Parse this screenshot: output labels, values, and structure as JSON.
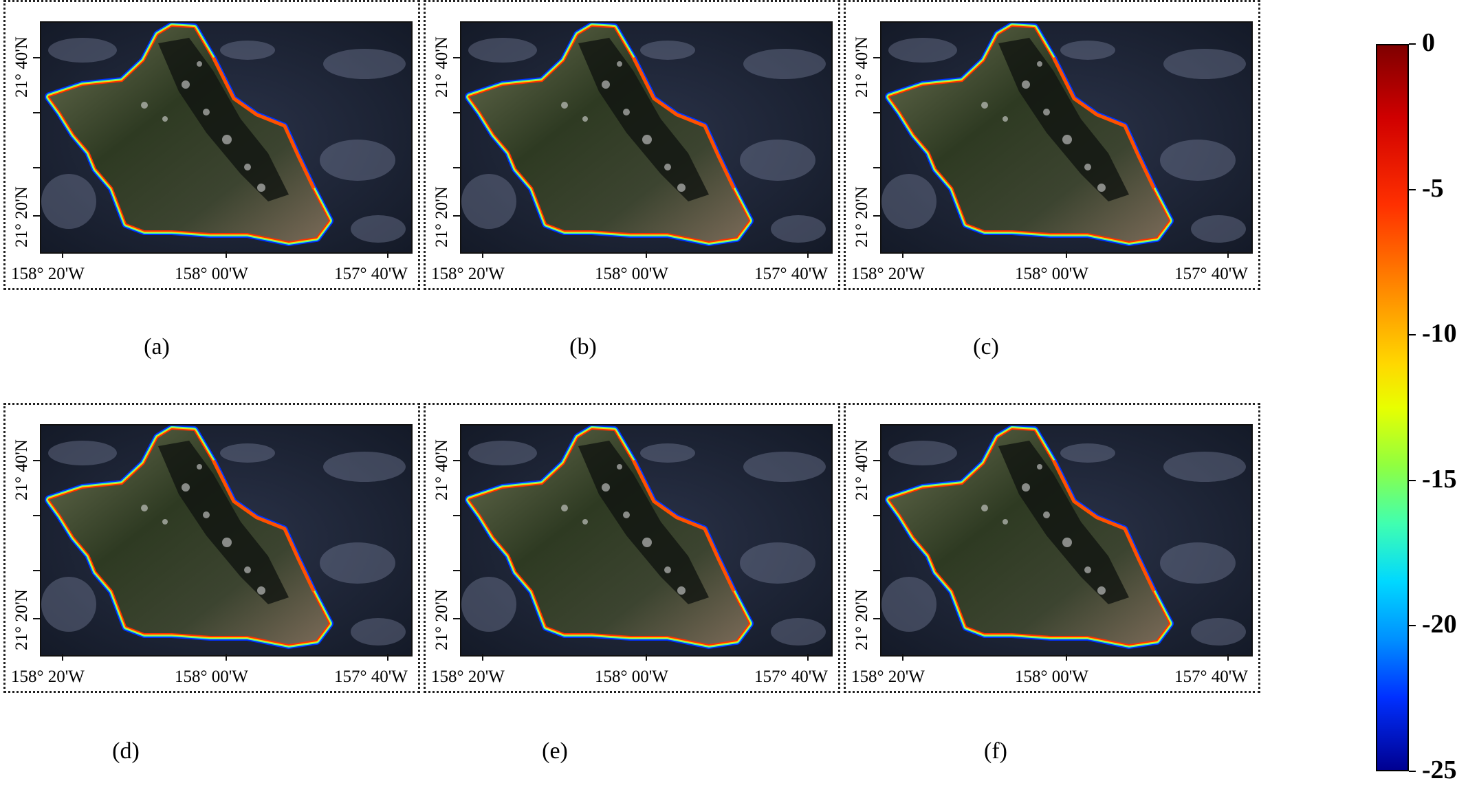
{
  "panels": [
    {
      "id": "a",
      "caption": "(a)"
    },
    {
      "id": "b",
      "caption": "(b)"
    },
    {
      "id": "c",
      "caption": "(c)"
    },
    {
      "id": "d",
      "caption": "(d)"
    },
    {
      "id": "e",
      "caption": "(e)"
    },
    {
      "id": "f",
      "caption": "(f)"
    }
  ],
  "axes": {
    "lat_top": "21° 40'N",
    "lat_bottom": "21° 20'N",
    "lon_left": "158° 20'W",
    "lon_mid": "158° 00'W",
    "lon_right": "157° 40'W"
  },
  "colorbar": {
    "labels": [
      "0",
      "-5",
      "-10",
      "-15",
      "-20",
      "-25"
    ],
    "min": -25,
    "max": 0,
    "colors": [
      "#7f0000",
      "#ff3000",
      "#ffd800",
      "#40ffb0",
      "#0030ff",
      "#000090"
    ]
  }
}
